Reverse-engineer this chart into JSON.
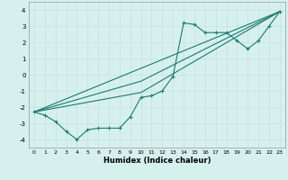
{
  "xlabel": "Humidex (Indice chaleur)",
  "ylabel": "",
  "background_color": "#d6f0ee",
  "grid_color": "#c4e4e0",
  "line_color": "#1a7a6e",
  "xlim": [
    -0.5,
    23.5
  ],
  "ylim": [
    -4.5,
    4.5
  ],
  "xticks": [
    0,
    1,
    2,
    3,
    4,
    5,
    6,
    7,
    8,
    9,
    10,
    11,
    12,
    13,
    14,
    15,
    16,
    17,
    18,
    19,
    20,
    21,
    22,
    23
  ],
  "yticks": [
    -4,
    -3,
    -2,
    -1,
    0,
    1,
    2,
    3,
    4
  ],
  "series1_x": [
    0,
    1,
    2,
    3,
    4,
    5,
    6,
    7,
    8,
    9,
    10,
    11,
    12,
    13,
    14,
    15,
    16,
    17,
    18,
    19,
    20,
    21,
    22,
    23
  ],
  "series1_y": [
    -2.3,
    -2.5,
    -2.9,
    -3.5,
    -4.0,
    -3.4,
    -3.3,
    -3.3,
    -3.3,
    -2.6,
    -1.4,
    -1.3,
    -1.0,
    -0.1,
    3.2,
    3.1,
    2.6,
    2.6,
    2.6,
    2.1,
    1.6,
    2.1,
    3.0,
    3.9
  ],
  "line1_x": [
    0,
    23
  ],
  "line1_y": [
    -2.3,
    3.9
  ],
  "line2_x": [
    0,
    10,
    23
  ],
  "line2_y": [
    -2.3,
    -1.1,
    3.9
  ],
  "line3_x": [
    0,
    10,
    23
  ],
  "line3_y": [
    -2.3,
    -0.4,
    3.9
  ]
}
